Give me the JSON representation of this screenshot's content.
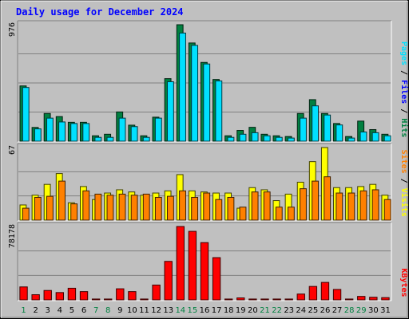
{
  "chart_data": {
    "title": "Daily usage for December 2024",
    "days": [
      "1",
      "2",
      "3",
      "4",
      "5",
      "6",
      "7",
      "8",
      "9",
      "10",
      "11",
      "12",
      "13",
      "14",
      "15",
      "16",
      "17",
      "18",
      "19",
      "20",
      "21",
      "22",
      "23",
      "24",
      "25",
      "26",
      "27",
      "28",
      "29",
      "30",
      "31"
    ],
    "weekend_days": [
      "1",
      "7",
      "8",
      "14",
      "15",
      "21",
      "22",
      "28",
      "29"
    ],
    "colors": {
      "hits": "#008040",
      "files": "#00e0ff",
      "sites": "#ff8000",
      "visits": "#ffff00",
      "kbytes": "#ff0000",
      "weekday_label": "#000000",
      "weekend_label": "#008040",
      "title": "#0000ff"
    },
    "panels": [
      {
        "type": "bar",
        "id": "hits_files",
        "ymax_label": "976",
        "ylim": [
          0,
          976
        ],
        "right_label": [
          {
            "text": "Pages",
            "color": "#00e0ff"
          },
          {
            "text": " / ",
            "color": "#000000"
          },
          {
            "text": "Files",
            "color": "#0000ff"
          },
          {
            "text": " / ",
            "color": "#000000"
          },
          {
            "text": "Hits",
            "color": "#008040"
          }
        ],
        "series": [
          {
            "name": "Hits",
            "color": "#008040",
            "values": [
              463,
              115,
              232,
              206,
              158,
              158,
              45,
              58,
              245,
              134,
              45,
              201,
              524,
              976,
              823,
              660,
              517,
              45,
              90,
              116,
              58,
              45,
              39,
              232,
              348,
              232,
              148,
              39,
              168,
              97,
              58
            ]
          },
          {
            "name": "Files",
            "color": "#00e0ff",
            "values": [
              450,
              103,
              193,
              161,
              148,
              148,
              32,
              32,
              193,
              122,
              32,
              193,
              498,
              906,
              803,
              647,
              505,
              32,
              58,
              71,
              45,
              32,
              26,
              193,
              296,
              219,
              136,
              26,
              77,
              71,
              45
            ]
          }
        ]
      },
      {
        "type": "bar",
        "id": "visits_sites",
        "ymax_label": "67",
        "ylim": [
          0,
          67
        ],
        "right_label": [
          {
            "text": "Sites",
            "color": "#ff8000"
          },
          {
            "text": " / ",
            "color": "#000000"
          },
          {
            "text": "Visits",
            "color": "#ffff00"
          }
        ],
        "series": [
          {
            "name": "Visits",
            "color": "#ffff00",
            "values": [
              14,
              23,
              33,
              43,
              16,
              31,
              19,
              25,
              28,
              26,
              23,
              25,
              27,
              42,
              27,
              26,
              25,
              25,
              11,
              30,
              28,
              18,
              24,
              35,
              54,
              67,
              30,
              30,
              31,
              33,
              23
            ]
          },
          {
            "name": "Sites",
            "color": "#ff8000",
            "values": [
              11,
              21,
              22,
              36,
              15,
              27,
              24,
              23,
              24,
              23,
              24,
              21,
              22,
              27,
              21,
              25,
              19,
              21,
              12,
              26,
              26,
              12,
              12,
              29,
              36,
              40,
              25,
              25,
              27,
              28,
              19
            ]
          }
        ]
      },
      {
        "type": "bar",
        "id": "kbytes",
        "ymax_label": "78178",
        "ylim": [
          0,
          78178
        ],
        "right_label": [
          {
            "text": "KBytes",
            "color": "#ff0000"
          }
        ],
        "series": [
          {
            "name": "KBytes",
            "color": "#ff0000",
            "values": [
              13800,
              5500,
              10000,
              7800,
              12400,
              8800,
              900,
              900,
              11800,
              8800,
              900,
              15800,
              41000,
              78178,
              73000,
              61000,
              45000,
              900,
              2100,
              900,
              900,
              900,
              900,
              6200,
              14300,
              18600,
              11100,
              900,
              3700,
              2800,
              2400
            ]
          }
        ]
      }
    ]
  }
}
